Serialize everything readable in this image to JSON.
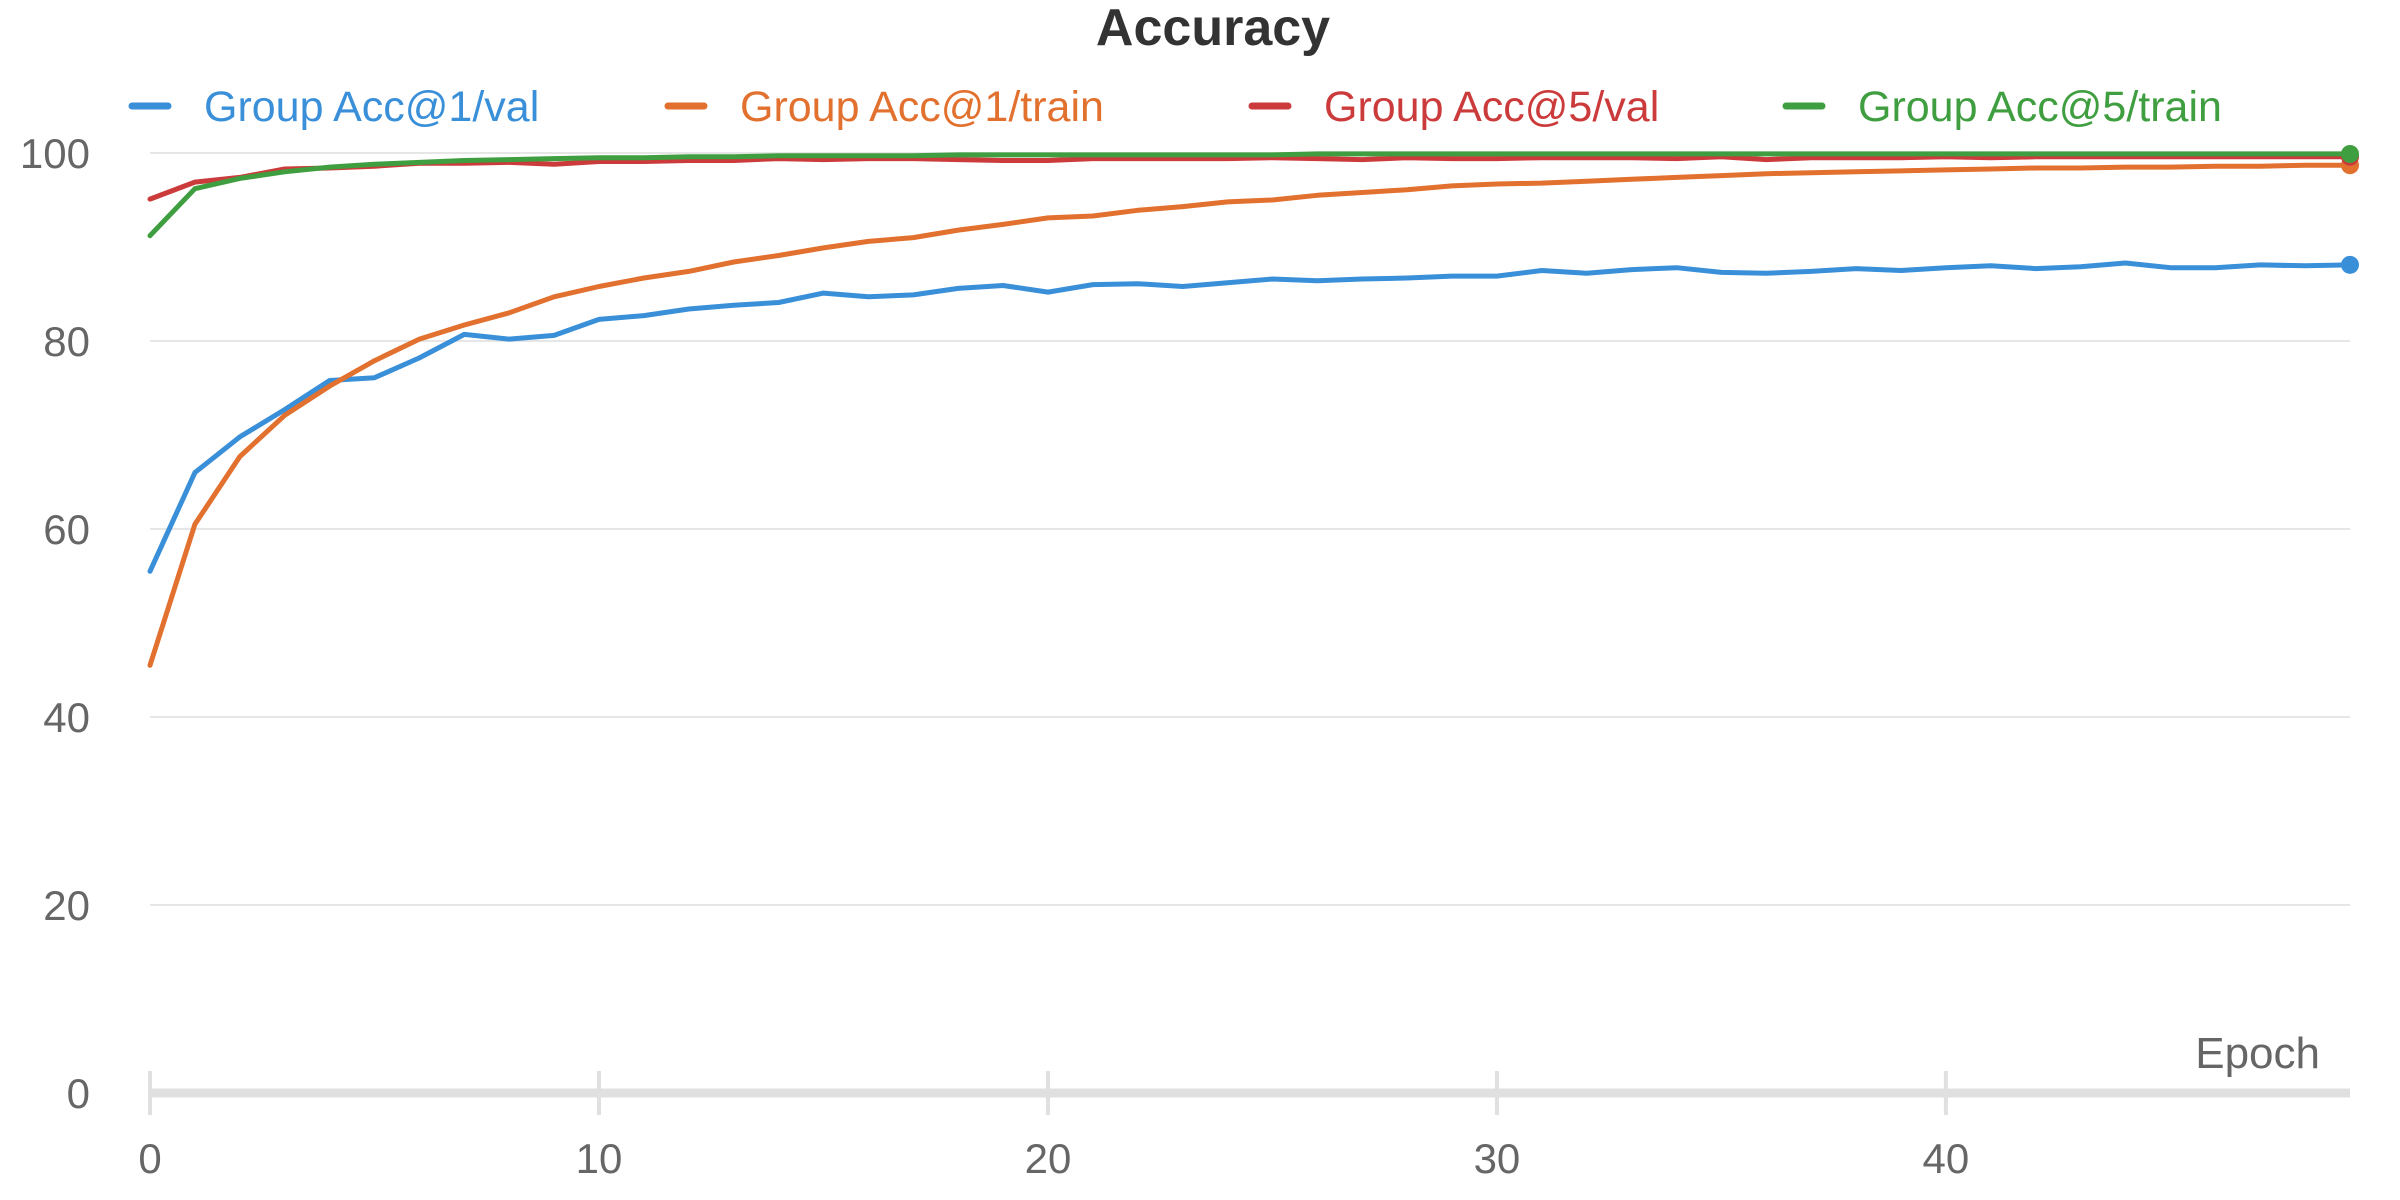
{
  "chart_data": {
    "type": "line",
    "title": "Accuracy",
    "xlabel": "Epoch",
    "ylabel": "",
    "xlim": [
      0,
      49
    ],
    "ylim": [
      0,
      100
    ],
    "x_ticks": [
      0,
      10,
      20,
      30,
      40
    ],
    "y_ticks": [
      0,
      20,
      40,
      60,
      80,
      100
    ],
    "grid": true,
    "legend_position": "top",
    "x": [
      0,
      1,
      2,
      3,
      4,
      5,
      6,
      7,
      8,
      9,
      10,
      11,
      12,
      13,
      14,
      15,
      16,
      17,
      18,
      19,
      20,
      21,
      22,
      23,
      24,
      25,
      26,
      27,
      28,
      29,
      30,
      31,
      32,
      33,
      34,
      35,
      36,
      37,
      38,
      39,
      40,
      41,
      42,
      43,
      44,
      45,
      46,
      47,
      48,
      49
    ],
    "series": [
      {
        "name": "Group Acc@1/val",
        "color": "#3a8fd9",
        "values": [
          55.5,
          66.0,
          69.8,
          72.7,
          75.8,
          76.1,
          78.2,
          80.7,
          80.2,
          80.6,
          82.3,
          82.7,
          83.4,
          83.8,
          84.1,
          85.1,
          84.7,
          84.9,
          85.6,
          85.9,
          85.2,
          86.0,
          86.1,
          85.8,
          86.2,
          86.6,
          86.4,
          86.6,
          86.7,
          86.9,
          86.9,
          87.5,
          87.2,
          87.6,
          87.8,
          87.3,
          87.2,
          87.4,
          87.7,
          87.5,
          87.8,
          88.0,
          87.7,
          87.9,
          88.3,
          87.8,
          87.8,
          88.1,
          88.0,
          88.1
        ]
      },
      {
        "name": "Group Acc@1/train",
        "color": "#e2702e",
        "values": [
          45.5,
          60.5,
          67.7,
          72.1,
          75.2,
          77.9,
          80.2,
          81.7,
          83.0,
          84.7,
          85.8,
          86.7,
          87.4,
          88.4,
          89.1,
          89.9,
          90.6,
          91.0,
          91.8,
          92.4,
          93.1,
          93.3,
          93.9,
          94.3,
          94.8,
          95.0,
          95.5,
          95.8,
          96.1,
          96.5,
          96.7,
          96.8,
          97.0,
          97.2,
          97.4,
          97.6,
          97.8,
          97.9,
          98.0,
          98.1,
          98.2,
          98.3,
          98.4,
          98.4,
          98.5,
          98.5,
          98.6,
          98.6,
          98.7,
          98.7
        ]
      },
      {
        "name": "Group Acc@5/val",
        "color": "#cc3b3b",
        "values": [
          95.1,
          96.9,
          97.4,
          98.3,
          98.4,
          98.6,
          98.9,
          98.9,
          99.0,
          98.8,
          99.1,
          99.1,
          99.2,
          99.2,
          99.4,
          99.3,
          99.4,
          99.4,
          99.3,
          99.2,
          99.2,
          99.4,
          99.4,
          99.4,
          99.4,
          99.5,
          99.4,
          99.3,
          99.5,
          99.4,
          99.4,
          99.5,
          99.5,
          99.5,
          99.4,
          99.6,
          99.3,
          99.5,
          99.5,
          99.5,
          99.6,
          99.5,
          99.6,
          99.6,
          99.6,
          99.6,
          99.6,
          99.6,
          99.6,
          99.6
        ]
      },
      {
        "name": "Group Acc@5/train",
        "color": "#3f9e3f",
        "values": [
          91.2,
          96.2,
          97.3,
          98.0,
          98.5,
          98.8,
          99.0,
          99.2,
          99.3,
          99.4,
          99.5,
          99.5,
          99.6,
          99.6,
          99.7,
          99.7,
          99.7,
          99.7,
          99.8,
          99.8,
          99.8,
          99.8,
          99.8,
          99.8,
          99.8,
          99.8,
          99.9,
          99.9,
          99.9,
          99.9,
          99.9,
          99.9,
          99.9,
          99.9,
          99.9,
          99.9,
          99.9,
          99.9,
          99.9,
          99.9,
          99.9,
          99.9,
          99.9,
          99.9,
          99.9,
          99.9,
          99.9,
          99.9,
          99.9,
          99.9
        ]
      }
    ]
  }
}
